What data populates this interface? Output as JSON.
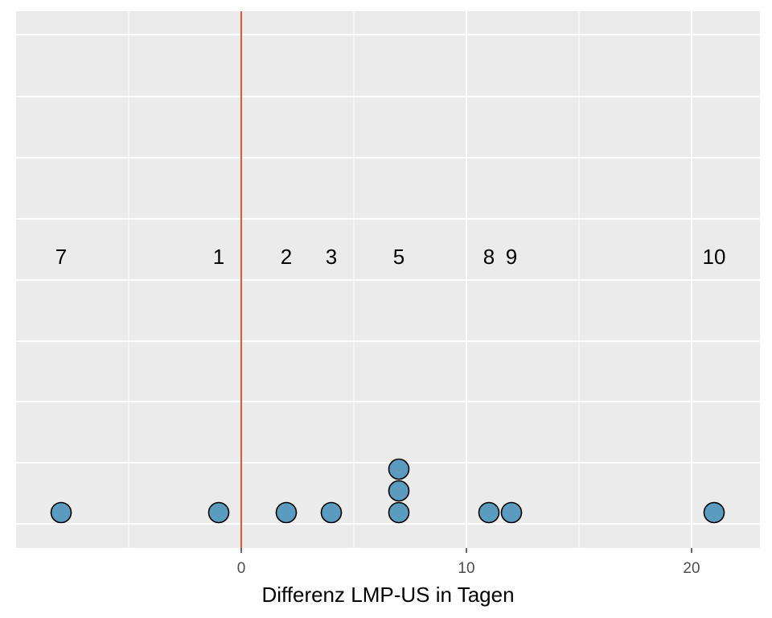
{
  "chart_data": {
    "type": "scatter",
    "title": "",
    "xlabel": "Differenz LMP-US in Tagen",
    "ylabel": "",
    "xlim": [
      -10,
      23
    ],
    "xticks": [
      0,
      10,
      20
    ],
    "xtick_labels": [
      "0",
      "10",
      "20"
    ],
    "reference_line": {
      "x": 0,
      "color": "#e8572f"
    },
    "point_color": "#5b9bbf",
    "stacked_points": [
      {
        "x": -8,
        "stack": 1
      },
      {
        "x": -1,
        "stack": 1
      },
      {
        "x": 2,
        "stack": 1
      },
      {
        "x": 4,
        "stack": 1
      },
      {
        "x": 7,
        "stack": 1
      },
      {
        "x": 7,
        "stack": 2
      },
      {
        "x": 7,
        "stack": 3
      },
      {
        "x": 11,
        "stack": 1
      },
      {
        "x": 12,
        "stack": 1
      },
      {
        "x": 21,
        "stack": 1
      }
    ],
    "labels": [
      {
        "x": -8,
        "text": "7"
      },
      {
        "x": -1,
        "text": "1"
      },
      {
        "x": 2,
        "text": "2"
      },
      {
        "x": 4,
        "text": "3"
      },
      {
        "x": 7,
        "text": "5"
      },
      {
        "x": 11,
        "text": "8"
      },
      {
        "x": 12,
        "text": "9"
      },
      {
        "x": 21,
        "text": "10"
      }
    ],
    "grid": true,
    "legend": "none"
  }
}
